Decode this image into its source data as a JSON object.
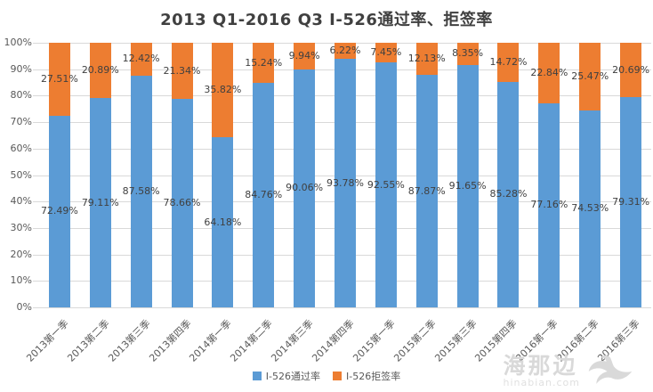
{
  "chart_data": {
    "type": "bar",
    "stacked": true,
    "title": "2013 Q1-2016 Q3 I-526通过率、拒签率",
    "categories": [
      "2013第一季",
      "2013第二季",
      "2013第三季",
      "2013第四季",
      "2014第一季",
      "2014第二季",
      "2014第三季",
      "2014第四季",
      "2015第一季",
      "2015第二季",
      "2015第三季",
      "2015第四季",
      "2016第一季",
      "2016第二季",
      "2016第三季"
    ],
    "series": [
      {
        "name": "I-526通过率",
        "color": "#5b9bd5",
        "values": [
          72.49,
          79.11,
          87.58,
          78.66,
          64.18,
          84.76,
          90.06,
          93.78,
          92.55,
          87.87,
          91.65,
          85.28,
          77.16,
          74.53,
          79.31
        ]
      },
      {
        "name": "I-526拒签率",
        "color": "#ed7d31",
        "values": [
          27.51,
          20.89,
          12.42,
          21.34,
          35.82,
          15.24,
          9.94,
          6.22,
          7.45,
          12.13,
          8.35,
          14.72,
          22.84,
          25.47,
          20.69
        ]
      }
    ],
    "ylabel": "",
    "xlabel": "",
    "ylim": [
      0,
      100
    ],
    "y_ticks": [
      "0%",
      "10%",
      "20%",
      "30%",
      "40%",
      "50%",
      "60%",
      "70%",
      "80%",
      "90%",
      "100%"
    ],
    "grid": true,
    "legend_position": "bottom",
    "label_format": "percent_2dp"
  },
  "watermark": {
    "brand": "海那边",
    "domain": "hinabian.com"
  },
  "colors": {
    "approval": "#5b9bd5",
    "denial": "#ed7d31",
    "grid": "#d9d9d9",
    "axis_text": "#595959",
    "data_label_text": "#404040",
    "title_text": "#404040",
    "watermark": "#d9d9d9"
  }
}
